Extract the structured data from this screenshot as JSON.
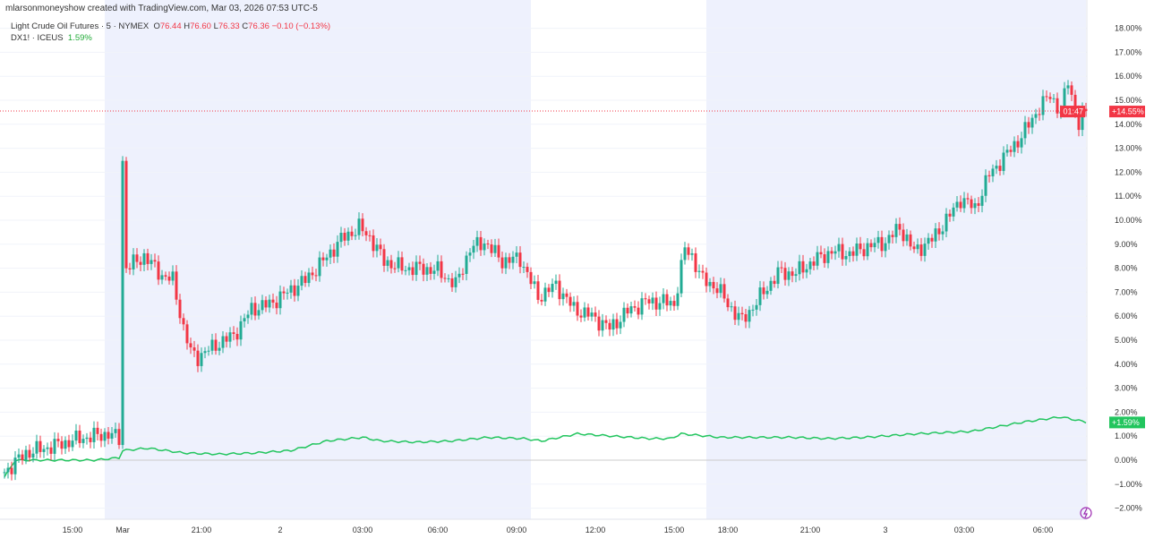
{
  "credit": "mlarsonmoneyshow created with TradingView.com, Mar 03, 2026 07:53 UTC-5",
  "legend": {
    "main": {
      "name": "Light Crude Oil Futures · 5 · NYMEX",
      "o_label": "O",
      "o": "76.44",
      "h_label": "H",
      "h": "76.60",
      "l_label": "L",
      "l": "76.33",
      "c_label": "C",
      "c": "76.36",
      "change": "−0.10 (−0.13%)"
    },
    "compare": {
      "name": "DX1! · ICEUS",
      "value": "1.59%"
    }
  },
  "colors": {
    "up": "#22ab94",
    "down": "#f23645",
    "dx_line": "#22c55e",
    "session": "#eef1fd"
  },
  "icons": [
    "lightning-icon"
  ],
  "chart_data": {
    "type": "candlestick+line",
    "y_unit": "%",
    "ylim": [
      -2.5,
      18.5
    ],
    "y_ticks": [
      "18.00%",
      "17.00%",
      "16.00%",
      "15.00%",
      "14.00%",
      "13.00%",
      "12.00%",
      "11.00%",
      "10.00%",
      "9.00%",
      "8.00%",
      "7.00%",
      "6.00%",
      "5.00%",
      "4.00%",
      "3.00%",
      "2.00%",
      "1.00%",
      "0.00%",
      "−1.00%",
      "−2.00%"
    ],
    "x_ticks": [
      {
        "bar": 19,
        "label": "15:00"
      },
      {
        "bar": 33,
        "label": "Mar"
      },
      {
        "bar": 55,
        "label": "21:00"
      },
      {
        "bar": 77,
        "label": "2"
      },
      {
        "bar": 100,
        "label": "03:00"
      },
      {
        "bar": 121,
        "label": "06:00"
      },
      {
        "bar": 143,
        "label": "09:00"
      },
      {
        "bar": 165,
        "label": "12:00"
      },
      {
        "bar": 187,
        "label": "15:00"
      },
      {
        "bar": 202,
        "label": "18:00"
      },
      {
        "bar": 225,
        "label": "21:00"
      },
      {
        "bar": 246,
        "label": "3"
      },
      {
        "bar": 268,
        "label": "03:00"
      },
      {
        "bar": 290,
        "label": "06:00"
      }
    ],
    "sessions": [
      [
        28,
        147
      ],
      [
        196,
        302
      ]
    ],
    "series": [
      {
        "name": "Light Crude Oil Futures",
        "kind": "candles",
        "last_label": "+14.55%",
        "countdown": "01:47",
        "path": [
          [
            0,
            -0.5
          ],
          [
            6,
            0.3
          ],
          [
            14,
            0.6
          ],
          [
            21,
            0.9
          ],
          [
            29,
            1.1
          ],
          [
            32,
            0.9
          ],
          [
            33,
            12.5
          ],
          [
            34,
            8
          ],
          [
            39,
            8.5
          ],
          [
            44,
            7.7
          ],
          [
            47,
            7.5
          ],
          [
            50,
            5.5
          ],
          [
            52,
            4.5
          ],
          [
            54,
            4.3
          ],
          [
            59,
            4.8
          ],
          [
            64,
            5.2
          ],
          [
            69,
            6.3
          ],
          [
            74,
            6.5
          ],
          [
            79,
            7
          ],
          [
            84,
            7.5
          ],
          [
            89,
            8.3
          ],
          [
            94,
            9.2
          ],
          [
            99,
            9.7
          ],
          [
            102,
            9.3
          ],
          [
            106,
            8.3
          ],
          [
            111,
            8
          ],
          [
            116,
            8
          ],
          [
            121,
            7.9
          ],
          [
            126,
            7.3
          ],
          [
            130,
            8.8
          ],
          [
            134,
            9.1
          ],
          [
            139,
            8.3
          ],
          [
            144,
            8.4
          ],
          [
            149,
            6.8
          ],
          [
            154,
            7.3
          ],
          [
            159,
            6.3
          ],
          [
            164,
            6
          ],
          [
            169,
            5.5
          ],
          [
            174,
            6.2
          ],
          [
            179,
            6.6
          ],
          [
            184,
            6.6
          ],
          [
            187,
            6.5
          ],
          [
            190,
            8.8
          ],
          [
            192,
            8.5
          ],
          [
            195,
            7.5
          ],
          [
            199,
            7.2
          ],
          [
            202,
            6.5
          ],
          [
            206,
            5.8
          ],
          [
            211,
            6.8
          ],
          [
            216,
            7.8
          ],
          [
            221,
            7.8
          ],
          [
            226,
            8.3
          ],
          [
            231,
            8.7
          ],
          [
            236,
            8.6
          ],
          [
            241,
            8.9
          ],
          [
            246,
            9.1
          ],
          [
            250,
            9.7
          ],
          [
            254,
            8.7
          ],
          [
            259,
            9.2
          ],
          [
            264,
            10.2
          ],
          [
            267,
            10.9
          ],
          [
            271,
            10.5
          ],
          [
            275,
            11.9
          ],
          [
            279,
            12.6
          ],
          [
            284,
            13.5
          ],
          [
            289,
            14.7
          ],
          [
            292,
            15.2
          ],
          [
            295,
            14.5
          ],
          [
            297,
            15.8
          ],
          [
            300,
            14
          ],
          [
            302,
            14.55
          ]
        ]
      },
      {
        "name": "DX1!",
        "kind": "line",
        "last_label": "+1.59%",
        "path": [
          [
            0,
            -0.7
          ],
          [
            3,
            0
          ],
          [
            10,
            0
          ],
          [
            25,
            0
          ],
          [
            32,
            0.1
          ],
          [
            33,
            0.4
          ],
          [
            40,
            0.5
          ],
          [
            50,
            0.3
          ],
          [
            60,
            0.25
          ],
          [
            70,
            0.3
          ],
          [
            80,
            0.4
          ],
          [
            90,
            0.8
          ],
          [
            100,
            0.95
          ],
          [
            105,
            0.8
          ],
          [
            115,
            0.75
          ],
          [
            125,
            0.8
          ],
          [
            135,
            0.95
          ],
          [
            145,
            0.9
          ],
          [
            150,
            0.8
          ],
          [
            160,
            1.1
          ],
          [
            170,
            1.0
          ],
          [
            180,
            0.9
          ],
          [
            186,
            0.9
          ],
          [
            189,
            1.1
          ],
          [
            200,
            0.95
          ],
          [
            220,
            0.95
          ],
          [
            230,
            0.9
          ],
          [
            240,
            0.95
          ],
          [
            255,
            1.1
          ],
          [
            270,
            1.2
          ],
          [
            285,
            1.6
          ],
          [
            295,
            1.8
          ],
          [
            302,
            1.59
          ]
        ]
      }
    ]
  }
}
